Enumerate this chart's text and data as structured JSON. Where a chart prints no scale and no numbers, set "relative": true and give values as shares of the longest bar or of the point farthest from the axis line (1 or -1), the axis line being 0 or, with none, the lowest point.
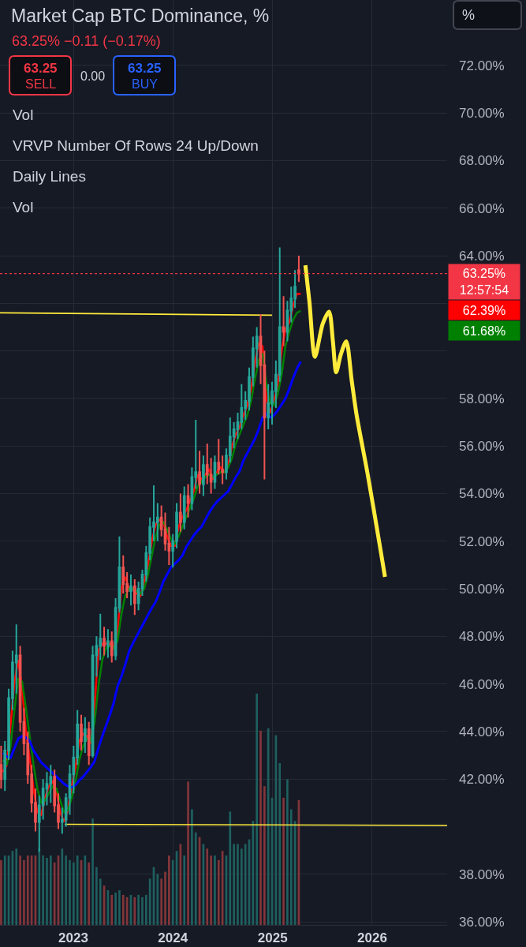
{
  "chart_data": [
    {
      "type": "candlestick",
      "title": "Market Cap BTC Dominance, %",
      "subtitle": "63.25% −0.11 (−0.17%)",
      "annotations": [
        "63.25",
        "SELL",
        "0.00",
        "63.25",
        "BUY",
        "Vol",
        "VRVP Number Of Rows 24 Up/Down",
        "Daily Lines",
        "Vol",
        "%",
        "12:57:54",
        "62.39%",
        "61.68%"
      ],
      "x": [
        "2022-04-11",
        "2022-04-25",
        "2022-05-09",
        "2022-05-23",
        "2022-06-06",
        "2022-06-20",
        "2022-07-04",
        "2022-07-18",
        "2022-08-01",
        "2022-08-15",
        "2022-08-29",
        "2022-09-12",
        "2022-09-26",
        "2022-10-10",
        "2022-10-24",
        "2022-11-07",
        "2022-11-21",
        "2022-12-05",
        "2022-12-19",
        "2023-01-02",
        "2023-01-16",
        "2023-01-30",
        "2023-02-13",
        "2023-02-27",
        "2023-03-13",
        "2023-03-27",
        "2023-04-10",
        "2023-04-24",
        "2023-05-08",
        "2023-05-22",
        "2023-06-05",
        "2023-06-19",
        "2023-07-03",
        "2023-07-17",
        "2023-07-31",
        "2023-08-14",
        "2023-08-28",
        "2023-09-11",
        "2023-09-25",
        "2023-10-09",
        "2023-10-23",
        "2023-11-06",
        "2023-11-20",
        "2023-12-04",
        "2023-12-18",
        "2024-01-01",
        "2024-01-15",
        "2024-01-29",
        "2024-02-12",
        "2024-02-26",
        "2024-03-11",
        "2024-03-25",
        "2024-04-08",
        "2024-04-22",
        "2024-05-06",
        "2024-05-20",
        "2024-06-03",
        "2024-06-17",
        "2024-07-01",
        "2024-07-15",
        "2024-07-29",
        "2024-08-12",
        "2024-08-26",
        "2024-09-09",
        "2024-09-23",
        "2024-10-07",
        "2024-10-21",
        "2024-11-04",
        "2024-11-18",
        "2024-12-02",
        "2024-12-16",
        "2024-12-30",
        "2025-01-13",
        "2025-01-27",
        "2025-02-10",
        "2025-02-24",
        "2025-03-10",
        "2025-03-24",
        "2025-04-07"
      ],
      "ohlc": [
        [
          42.6,
          43.4,
          41.6,
          42.0
        ],
        [
          42.0,
          43.6,
          41.5,
          43.2
        ],
        [
          43.2,
          45.8,
          42.8,
          45.4
        ],
        [
          45.4,
          47.4,
          44.9,
          46.9
        ],
        [
          46.9,
          48.5,
          45.6,
          47.2
        ],
        [
          47.2,
          47.6,
          44.0,
          44.4
        ],
        [
          44.4,
          45.0,
          43.0,
          43.5
        ],
        [
          43.5,
          44.0,
          41.8,
          42.2
        ],
        [
          42.2,
          42.6,
          40.6,
          41.0
        ],
        [
          41.0,
          41.6,
          39.8,
          40.2
        ],
        [
          40.2,
          41.3,
          38.95,
          40.9
        ],
        [
          40.9,
          42.0,
          40.3,
          41.6
        ],
        [
          41.6,
          42.3,
          40.9,
          41.8
        ],
        [
          41.8,
          42.6,
          41.0,
          42.1
        ],
        [
          42.1,
          42.4,
          40.6,
          40.9
        ],
        [
          40.9,
          41.4,
          39.9,
          40.2
        ],
        [
          40.2,
          40.8,
          39.7,
          40.3
        ],
        [
          40.3,
          41.4,
          40.0,
          41.2
        ],
        [
          41.2,
          42.6,
          40.5,
          42.2
        ],
        [
          42.2,
          43.4,
          41.4,
          42.9
        ],
        [
          42.9,
          44.9,
          42.6,
          44.3
        ],
        [
          44.3,
          44.7,
          43.2,
          43.6
        ],
        [
          43.6,
          44.6,
          43.1,
          44.1
        ],
        [
          44.1,
          44.4,
          42.6,
          43.0
        ],
        [
          43.0,
          47.6,
          42.9,
          47.2
        ],
        [
          47.2,
          48.0,
          46.3,
          47.6
        ],
        [
          47.6,
          48.95,
          47.0,
          47.9
        ],
        [
          47.9,
          48.4,
          47.2,
          47.6
        ],
        [
          47.6,
          48.3,
          47.1,
          47.8
        ],
        [
          47.8,
          48.2,
          46.9,
          47.2
        ],
        [
          47.2,
          49.6,
          47.0,
          49.2
        ],
        [
          49.2,
          52.2,
          49.0,
          50.9
        ],
        [
          50.9,
          51.4,
          49.8,
          50.2
        ],
        [
          50.2,
          50.7,
          49.6,
          49.9
        ],
        [
          49.9,
          50.6,
          49.3,
          50.1
        ],
        [
          50.1,
          50.4,
          48.9,
          49.4
        ],
        [
          49.4,
          50.3,
          49.1,
          50.0
        ],
        [
          50.0,
          50.8,
          49.7,
          50.6
        ],
        [
          50.6,
          51.8,
          50.3,
          51.5
        ],
        [
          51.5,
          53.0,
          51.2,
          52.6
        ],
        [
          52.6,
          54.35,
          52.0,
          52.8
        ],
        [
          52.8,
          53.6,
          52.0,
          53.0
        ],
        [
          53.0,
          53.5,
          52.2,
          52.5
        ],
        [
          52.5,
          53.2,
          51.6,
          51.9
        ],
        [
          51.9,
          52.6,
          51.0,
          51.6
        ],
        [
          51.6,
          52.3,
          50.9,
          52.0
        ],
        [
          52.0,
          53.6,
          51.7,
          53.2
        ],
        [
          53.2,
          54.0,
          52.4,
          52.8
        ],
        [
          52.8,
          54.3,
          52.5,
          53.9
        ],
        [
          53.9,
          54.4,
          53.0,
          53.6
        ],
        [
          53.6,
          55.1,
          53.3,
          54.7
        ],
        [
          54.7,
          57.1,
          54.2,
          54.9
        ],
        [
          54.9,
          55.8,
          54.0,
          54.4
        ],
        [
          54.4,
          55.6,
          53.9,
          55.2
        ],
        [
          55.2,
          56.1,
          54.4,
          54.8
        ],
        [
          54.8,
          55.5,
          54.0,
          54.5
        ],
        [
          54.5,
          55.6,
          54.2,
          55.3
        ],
        [
          55.3,
          56.3,
          54.8,
          55.0
        ],
        [
          55.0,
          55.6,
          54.4,
          54.9
        ],
        [
          54.9,
          55.9,
          54.6,
          55.6
        ],
        [
          55.6,
          57.2,
          55.3,
          56.4
        ],
        [
          56.4,
          57.0,
          55.9,
          56.7
        ],
        [
          56.7,
          57.4,
          56.3,
          57.0
        ],
        [
          57.0,
          58.6,
          56.7,
          57.6
        ],
        [
          57.6,
          58.3,
          57.1,
          57.9
        ],
        [
          57.9,
          59.3,
          57.5,
          58.9
        ],
        [
          58.9,
          60.6,
          58.5,
          60.1
        ],
        [
          60.1,
          61.0,
          59.3,
          60.6
        ],
        [
          60.6,
          61.55,
          58.6,
          59.4
        ],
        [
          59.4,
          60.0,
          54.6,
          57.2
        ],
        [
          57.2,
          58.6,
          56.7,
          57.8
        ],
        [
          57.8,
          58.7,
          56.9,
          58.3
        ],
        [
          58.3,
          59.6,
          57.6,
          59.0
        ],
        [
          59.0,
          64.35,
          58.7,
          61.0
        ],
        [
          61.0,
          62.3,
          60.2,
          60.8
        ],
        [
          60.8,
          62.1,
          60.4,
          61.7
        ],
        [
          61.7,
          62.7,
          61.2,
          62.2
        ],
        [
          62.2,
          63.4,
          61.8,
          62.7
        ],
        [
          63.4,
          64.0,
          62.9,
          63.25
        ]
      ],
      "colors": [
        "#ef5350",
        "#26a69a",
        "#26a69a",
        "#26a69a",
        "#26a69a",
        "#ef5350",
        "#ef5350",
        "#ef5350",
        "#ef5350",
        "#ef5350",
        "#26a69a",
        "#26a69a",
        "#26a69a",
        "#26a69a",
        "#ef5350",
        "#ef5350",
        "#26a69a",
        "#26a69a",
        "#26a69a",
        "#26a69a",
        "#26a69a",
        "#ef5350",
        "#26a69a",
        "#ef5350",
        "#26a69a",
        "#26a69a",
        "#26a69a",
        "#ef5350",
        "#26a69a",
        "#ef5350",
        "#26a69a",
        "#26a69a",
        "#ef5350",
        "#ef5350",
        "#26a69a",
        "#ef5350",
        "#26a69a",
        "#26a69a",
        "#26a69a",
        "#26a69a",
        "#26a69a",
        "#26a69a",
        "#ef5350",
        "#ef5350",
        "#ef5350",
        "#26a69a",
        "#26a69a",
        "#ef5350",
        "#26a69a",
        "#ef5350",
        "#26a69a",
        "#26a69a",
        "#ef5350",
        "#26a69a",
        "#ef5350",
        "#ef5350",
        "#26a69a",
        "#ef5350",
        "#ef5350",
        "#26a69a",
        "#26a69a",
        "#26a69a",
        "#26a69a",
        "#26a69a",
        "#26a69a",
        "#26a69a",
        "#26a69a",
        "#26a69a",
        "#ef5350",
        "#ef5350",
        "#26a69a",
        "#26a69a",
        "#26a69a",
        "#26a69a",
        "#ef5350",
        "#26a69a",
        "#26a69a",
        "#26a69a",
        "#ef5350"
      ],
      "series": [
        {
          "type": "line",
          "color": "#ff0000",
          "x": [
            "2022-04-18",
            "2022-05-02",
            "2022-05-16",
            "2022-05-30",
            "2022-06-13",
            "2022-06-27",
            "2022-07-11",
            "2022-07-25",
            "2022-08-08",
            "2022-08-22",
            "2022-09-05",
            "2022-09-19",
            "2022-10-03",
            "2022-10-17",
            "2022-10-31",
            "2022-11-14",
            "2022-11-28",
            "2022-12-12",
            "2022-12-26",
            "2023-01-09",
            "2023-01-23",
            "2023-02-06",
            "2023-02-20",
            "2023-03-06",
            "2023-03-20",
            "2023-04-03",
            "2023-04-17",
            "2023-05-01",
            "2023-05-15",
            "2023-05-29",
            "2023-06-12",
            "2023-06-26",
            "2023-07-10",
            "2023-07-24",
            "2023-08-07",
            "2023-08-21",
            "2023-09-04",
            "2023-09-18",
            "2023-10-02",
            "2023-10-16",
            "2023-10-30",
            "2023-11-13",
            "2023-11-27",
            "2023-12-11",
            "2023-12-25",
            "2024-01-08",
            "2024-01-22",
            "2024-02-05",
            "2024-02-19",
            "2024-03-04",
            "2024-03-18",
            "2024-04-01",
            "2024-04-15",
            "2024-04-29",
            "2024-05-13",
            "2024-05-27",
            "2024-06-10",
            "2024-06-24",
            "2024-07-08",
            "2024-07-22",
            "2024-08-05",
            "2024-08-19",
            "2024-09-02",
            "2024-09-16",
            "2024-09-30",
            "2024-10-14",
            "2024-10-28",
            "2024-11-11",
            "2024-11-25",
            "2024-12-09",
            "2024-12-23",
            "2025-01-06",
            "2025-01-20",
            "2025-02-03",
            "2025-02-17",
            "2025-03-03",
            "2025-03-17",
            "2025-03-31",
            "2025-04-14"
          ],
          "values": [
            42.3,
            42.6,
            44.3,
            46.1,
            47.0,
            45.8,
            44.0,
            42.9,
            41.6,
            40.6,
            40.5,
            41.2,
            41.7,
            41.9,
            41.5,
            40.6,
            40.2,
            40.7,
            41.7,
            42.5,
            43.6,
            43.9,
            43.8,
            43.5,
            45.1,
            47.4,
            47.7,
            47.7,
            47.7,
            47.5,
            48.2,
            50.0,
            50.5,
            50.0,
            50.0,
            49.8,
            49.7,
            50.3,
            51.0,
            52.0,
            52.7,
            52.9,
            52.8,
            52.2,
            51.8,
            51.8,
            52.6,
            53.0,
            53.3,
            53.7,
            54.1,
            54.8,
            54.6,
            54.8,
            55.0,
            54.6,
            54.9,
            55.1,
            54.9,
            55.2,
            56.0,
            56.5,
            56.8,
            57.3,
            57.7,
            58.4,
            59.5,
            60.3,
            60.2,
            58.0,
            57.4,
            57.9,
            58.6,
            60.0,
            60.9,
            61.2,
            61.9,
            62.4,
            62.39
          ]
        },
        {
          "type": "line",
          "color": "#008000",
          "x": [
            "2022-04-18",
            "2022-05-02",
            "2022-05-16",
            "2022-05-30",
            "2022-06-13",
            "2022-06-27",
            "2022-07-11",
            "2022-07-25",
            "2022-08-08",
            "2022-08-22",
            "2022-09-05",
            "2022-09-19",
            "2022-10-03",
            "2022-10-17",
            "2022-10-31",
            "2022-11-14",
            "2022-11-28",
            "2022-12-12",
            "2022-12-26",
            "2023-01-09",
            "2023-01-23",
            "2023-02-06",
            "2023-02-20",
            "2023-03-06",
            "2023-03-20",
            "2023-04-03",
            "2023-04-17",
            "2023-05-01",
            "2023-05-15",
            "2023-05-29",
            "2023-06-12",
            "2023-06-26",
            "2023-07-10",
            "2023-07-24",
            "2023-08-07",
            "2023-08-21",
            "2023-09-04",
            "2023-09-18",
            "2023-10-02",
            "2023-10-16",
            "2023-10-30",
            "2023-11-13",
            "2023-11-27",
            "2023-12-11",
            "2023-12-25",
            "2024-01-08",
            "2024-01-22",
            "2024-02-05",
            "2024-02-19",
            "2024-03-04",
            "2024-03-18",
            "2024-04-01",
            "2024-04-15",
            "2024-04-29",
            "2024-05-13",
            "2024-05-27",
            "2024-06-10",
            "2024-06-24",
            "2024-07-08",
            "2024-07-22",
            "2024-08-05",
            "2024-08-19",
            "2024-09-02",
            "2024-09-16",
            "2024-09-30",
            "2024-10-14",
            "2024-10-28",
            "2024-11-11",
            "2024-11-25",
            "2024-12-09",
            "2024-12-23",
            "2025-01-06",
            "2025-01-20",
            "2025-02-03",
            "2025-02-17",
            "2025-03-03",
            "2025-03-17",
            "2025-03-31",
            "2025-04-14"
          ],
          "values": [
            42.8,
            42.6,
            43.4,
            44.9,
            46.2,
            46.1,
            45.0,
            43.8,
            42.6,
            41.6,
            41.0,
            41.1,
            41.4,
            41.7,
            41.6,
            41.1,
            40.6,
            40.7,
            41.2,
            41.9,
            42.8,
            43.4,
            43.7,
            43.6,
            44.4,
            45.9,
            47.0,
            47.5,
            47.6,
            47.5,
            47.8,
            48.9,
            49.7,
            50.0,
            50.0,
            49.9,
            49.8,
            50.0,
            50.6,
            51.4,
            52.2,
            52.7,
            52.8,
            52.5,
            52.1,
            51.9,
            52.2,
            52.6,
            53.0,
            53.4,
            53.8,
            54.3,
            54.5,
            54.7,
            54.8,
            54.7,
            54.8,
            54.9,
            54.9,
            55.1,
            55.5,
            56.1,
            56.5,
            56.9,
            57.3,
            57.9,
            58.8,
            59.6,
            59.9,
            58.6,
            57.8,
            57.7,
            58.2,
            59.0,
            60.2,
            60.8,
            61.3,
            61.6,
            61.68
          ]
        },
        {
          "type": "line",
          "color": "#0000ff",
          "x": [
            "2022-04-18",
            "2022-05-02",
            "2022-05-16",
            "2022-05-30",
            "2022-06-13",
            "2022-06-27",
            "2022-07-11",
            "2022-07-25",
            "2022-08-08",
            "2022-08-22",
            "2022-09-05",
            "2022-09-19",
            "2022-10-03",
            "2022-10-17",
            "2022-10-31",
            "2022-11-14",
            "2022-11-28",
            "2022-12-12",
            "2022-12-26",
            "2023-01-09",
            "2023-01-23",
            "2023-02-06",
            "2023-02-20",
            "2023-03-06",
            "2023-03-20",
            "2023-04-03",
            "2023-04-17",
            "2023-05-01",
            "2023-05-15",
            "2023-05-29",
            "2023-06-12",
            "2023-06-26",
            "2023-07-10",
            "2023-07-24",
            "2023-08-07",
            "2023-08-21",
            "2023-09-04",
            "2023-09-18",
            "2023-10-02",
            "2023-10-16",
            "2023-10-30",
            "2023-11-13",
            "2023-11-27",
            "2023-12-11",
            "2023-12-25",
            "2024-01-08",
            "2024-01-22",
            "2024-02-05",
            "2024-02-19",
            "2024-03-04",
            "2024-03-18",
            "2024-04-01",
            "2024-04-15",
            "2024-04-29",
            "2024-05-13",
            "2024-05-27",
            "2024-06-10",
            "2024-06-24",
            "2024-07-08",
            "2024-07-22",
            "2024-08-05",
            "2024-08-19",
            "2024-09-02",
            "2024-09-16",
            "2024-09-30",
            "2024-10-14",
            "2024-10-28",
            "2024-11-11",
            "2024-11-25",
            "2024-12-09",
            "2024-12-23",
            "2025-01-06",
            "2025-01-20",
            "2025-02-03",
            "2025-02-17",
            "2025-03-03",
            "2025-03-17",
            "2025-03-31",
            "2025-04-14"
          ],
          "values": [
            43.1,
            42.95,
            42.9,
            43.3,
            43.7,
            43.8,
            43.75,
            43.6,
            43.2,
            42.95,
            42.7,
            42.55,
            42.4,
            42.25,
            42.1,
            41.95,
            41.8,
            41.7,
            41.65,
            41.75,
            41.95,
            42.1,
            42.3,
            42.5,
            42.75,
            43.3,
            43.8,
            44.25,
            44.7,
            45.2,
            45.9,
            46.3,
            46.8,
            47.35,
            47.7,
            48.0,
            48.3,
            48.6,
            48.9,
            49.2,
            49.45,
            49.85,
            50.3,
            50.6,
            50.9,
            51.05,
            51.2,
            51.4,
            51.75,
            52.0,
            52.25,
            52.45,
            52.6,
            52.9,
            53.2,
            53.45,
            53.65,
            53.8,
            53.95,
            54.1,
            54.4,
            54.7,
            54.95,
            55.4,
            55.7,
            56.0,
            56.3,
            56.7,
            57.2,
            57.35,
            57.2,
            57.3,
            57.5,
            57.75,
            58.0,
            58.4,
            58.85,
            59.25,
            59.55
          ]
        },
        {
          "type": "line",
          "color": "#ffeb3b",
          "x": [
            "2025-05-01",
            "2025-05-16",
            "2025-06-05",
            "2025-07-04",
            "2025-07-27",
            "2025-08-10",
            "2025-08-22",
            "2025-09-08",
            "2025-09-28",
            "2025-10-18",
            "2025-11-05",
            "2025-12-15",
            "2026-01-30",
            "2026-02-17"
          ],
          "values": [
            63.6,
            62.05,
            59.75,
            61.15,
            61.65,
            60.4,
            59.1,
            59.85,
            60.4,
            58.75,
            57.3,
            54.85,
            51.75,
            50.5
          ]
        },
        {
          "type": "line",
          "color": "#ffeb3b",
          "x": [
            "2022-04-07",
            "2024-12-30"
          ],
          "values": [
            61.6,
            61.5
          ]
        },
        {
          "type": "line",
          "color": "#ffeb3b",
          "x": [
            "2022-11-30",
            "2026-10-03"
          ],
          "values": [
            40.1,
            40.05
          ]
        }
      ],
      "ref_lines": [
        {
          "axis": "y",
          "value": 63.25,
          "label": "63.25%",
          "color": "#f23645",
          "line_style": "dotted"
        }
      ],
      "xlim": [
        "2022-04-07",
        "2026-10-03"
      ],
      "xticks": [
        "2023",
        "2024",
        "2025",
        "2026"
      ],
      "ylim": [
        35.87,
        74.75
      ],
      "yticks": [
        {
          "value": 36,
          "label": "36.00%"
        },
        {
          "value": 38,
          "label": "38.00%"
        },
        {
          "value": 40,
          "label": null
        },
        {
          "value": 42,
          "label": "42.00%"
        },
        {
          "value": 44,
          "label": "44.00%"
        },
        {
          "value": 46,
          "label": "46.00%"
        },
        {
          "value": 48,
          "label": "48.00%"
        },
        {
          "value": 50,
          "label": "50.00%"
        },
        {
          "value": 52,
          "label": "52.00%"
        },
        {
          "value": 54,
          "label": "54.00%"
        },
        {
          "value": 56,
          "label": "56.00%"
        },
        {
          "value": 58,
          "label": "58.00%"
        },
        {
          "value": 60,
          "label": null
        },
        {
          "value": 62,
          "label": null
        },
        {
          "value": 64,
          "label": "64.00%"
        },
        {
          "value": 66,
          "label": "66.00%"
        },
        {
          "value": 68,
          "label": "68.00%"
        },
        {
          "value": 70,
          "label": "70.00%"
        },
        {
          "value": 72,
          "label": "72.00%"
        }
      ],
      "grid": true
    },
    {
      "type": "bar",
      "relative": true,
      "tick_labels": false,
      "xlim": [
        "2022-04-07",
        "2026-10-03"
      ],
      "x": [
        "2022-04-11",
        "2022-04-25",
        "2022-05-09",
        "2022-05-23",
        "2022-06-06",
        "2022-06-20",
        "2022-07-04",
        "2022-07-18",
        "2022-08-01",
        "2022-08-15",
        "2022-08-29",
        "2022-09-12",
        "2022-09-26",
        "2022-10-10",
        "2022-10-24",
        "2022-11-07",
        "2022-11-21",
        "2022-12-05",
        "2022-12-19",
        "2023-01-02",
        "2023-01-16",
        "2023-01-30",
        "2023-02-13",
        "2023-02-27",
        "2023-03-13",
        "2023-03-27",
        "2023-04-10",
        "2023-04-24",
        "2023-05-08",
        "2023-05-22",
        "2023-06-05",
        "2023-06-19",
        "2023-07-03",
        "2023-07-17",
        "2023-07-31",
        "2023-08-14",
        "2023-08-28",
        "2023-09-11",
        "2023-09-25",
        "2023-10-09",
        "2023-10-23",
        "2023-11-06",
        "2023-11-20",
        "2023-12-04",
        "2023-12-18",
        "2024-01-01",
        "2024-01-15",
        "2024-01-29",
        "2024-02-12",
        "2024-02-26",
        "2024-03-11",
        "2024-03-25",
        "2024-04-08",
        "2024-04-22",
        "2024-05-06",
        "2024-05-20",
        "2024-06-03",
        "2024-06-17",
        "2024-07-01",
        "2024-07-15",
        "2024-07-29",
        "2024-08-12",
        "2024-08-26",
        "2024-09-09",
        "2024-09-23",
        "2024-10-07",
        "2024-10-21",
        "2024-11-04",
        "2024-11-18",
        "2024-12-02",
        "2024-12-16",
        "2024-12-30",
        "2025-01-13",
        "2025-01-27",
        "2025-02-10",
        "2025-02-24",
        "2025-03-10",
        "2025-03-24",
        "2025-04-07"
      ],
      "values": [
        0.28,
        0.3,
        0.3,
        0.32,
        0.33,
        0.3,
        0.28,
        0.3,
        0.3,
        0.3,
        0.33,
        0.3,
        0.29,
        0.3,
        0.27,
        0.3,
        0.33,
        0.3,
        0.28,
        0.27,
        0.3,
        0.28,
        0.3,
        0.27,
        0.46,
        0.25,
        0.2,
        0.17,
        0.15,
        0.13,
        0.14,
        0.15,
        0.13,
        0.12,
        0.13,
        0.12,
        0.13,
        0.12,
        0.13,
        0.2,
        0.25,
        0.22,
        0.2,
        0.23,
        0.3,
        0.28,
        0.32,
        0.35,
        0.3,
        0.62,
        0.5,
        0.4,
        0.38,
        0.35,
        0.33,
        0.3,
        0.3,
        0.28,
        0.32,
        0.3,
        0.49,
        0.35,
        0.35,
        0.33,
        0.35,
        0.37,
        0.45,
        1.0,
        0.84,
        0.6,
        0.85,
        0.55,
        0.82,
        0.7,
        0.55,
        0.63,
        0.5,
        0.45,
        0.54
      ],
      "colors": [
        "#82363a",
        "#1e605f",
        "#1e605f",
        "#1e605f",
        "#1e605f",
        "#82363a",
        "#82363a",
        "#82363a",
        "#82363a",
        "#82363a",
        "#1e605f",
        "#1e605f",
        "#1e605f",
        "#1e605f",
        "#82363a",
        "#82363a",
        "#1e605f",
        "#1e605f",
        "#1e605f",
        "#1e605f",
        "#1e605f",
        "#82363a",
        "#1e605f",
        "#82363a",
        "#1e605f",
        "#1e605f",
        "#1e605f",
        "#82363a",
        "#1e605f",
        "#82363a",
        "#1e605f",
        "#1e605f",
        "#82363a",
        "#82363a",
        "#1e605f",
        "#82363a",
        "#1e605f",
        "#1e605f",
        "#1e605f",
        "#1e605f",
        "#1e605f",
        "#1e605f",
        "#82363a",
        "#82363a",
        "#82363a",
        "#1e605f",
        "#1e605f",
        "#82363a",
        "#1e605f",
        "#82363a",
        "#1e605f",
        "#1e605f",
        "#82363a",
        "#1e605f",
        "#82363a",
        "#82363a",
        "#1e605f",
        "#82363a",
        "#82363a",
        "#1e605f",
        "#1e605f",
        "#1e605f",
        "#1e605f",
        "#1e605f",
        "#1e605f",
        "#1e605f",
        "#1e605f",
        "#1e605f",
        "#82363a",
        "#82363a",
        "#1e605f",
        "#1e605f",
        "#1e605f",
        "#1e605f",
        "#82363a",
        "#1e605f",
        "#1e605f",
        "#1e605f",
        "#82363a"
      ]
    }
  ]
}
